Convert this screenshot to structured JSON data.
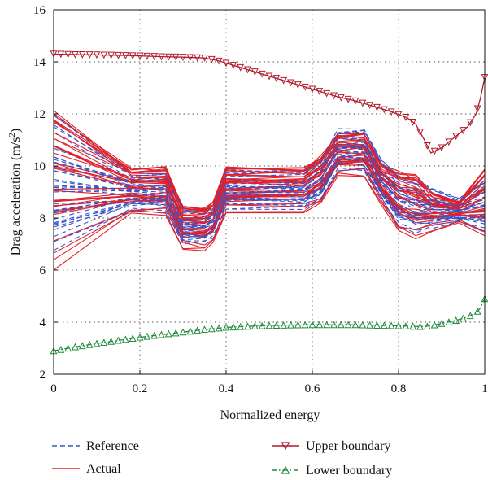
{
  "chart_data": {
    "type": "line",
    "xlabel": "Normalized energy",
    "ylabel": "Drag acceleration (m/s",
    "ylabel_sup": "2",
    "ylabel_close": ")",
    "xlim": [
      0,
      1
    ],
    "ylim": [
      2,
      16
    ],
    "xticks": [
      0,
      0.2,
      0.4,
      0.6,
      0.8,
      1
    ],
    "xtick_labels": [
      "0",
      "0.2",
      "0.4",
      "0.6",
      "0.8",
      "1"
    ],
    "yticks": [
      2,
      4,
      6,
      8,
      10,
      12,
      14,
      16
    ],
    "ytick_labels": [
      "2",
      "4",
      "6",
      "8",
      "10",
      "12",
      "14",
      "16"
    ],
    "grid": true,
    "legend_placement": "bottom",
    "colors": {
      "reference": "#3355cc",
      "actual": "#e0202a",
      "upper": "#b01c2e",
      "lower": "#1e8a3a"
    },
    "series": [
      {
        "name": "Upper boundary",
        "style": "solid-with-down-triangles",
        "x": [
          0,
          0.05,
          0.1,
          0.15,
          0.2,
          0.25,
          0.3,
          0.35,
          0.38,
          0.42,
          0.46,
          0.5,
          0.54,
          0.58,
          0.62,
          0.66,
          0.7,
          0.74,
          0.78,
          0.82,
          0.84,
          0.86,
          0.875,
          0.9,
          0.93,
          0.96,
          0.98,
          0.99,
          1.0
        ],
        "y": [
          14.3,
          14.28,
          14.27,
          14.25,
          14.23,
          14.2,
          14.18,
          14.15,
          14.05,
          13.85,
          13.65,
          13.45,
          13.25,
          13.05,
          12.85,
          12.65,
          12.5,
          12.3,
          12.1,
          11.85,
          11.6,
          11.0,
          10.5,
          10.7,
          11.1,
          11.5,
          12.0,
          12.6,
          13.4
        ]
      },
      {
        "name": "Lower boundary",
        "style": "dashdot-with-up-triangles",
        "x": [
          0,
          0.05,
          0.1,
          0.15,
          0.2,
          0.25,
          0.3,
          0.35,
          0.4,
          0.45,
          0.5,
          0.55,
          0.6,
          0.65,
          0.7,
          0.75,
          0.8,
          0.85,
          0.87,
          0.9,
          0.93,
          0.96,
          0.98,
          0.99,
          1.0
        ],
        "y": [
          2.9,
          3.05,
          3.18,
          3.3,
          3.42,
          3.52,
          3.62,
          3.72,
          3.8,
          3.84,
          3.87,
          3.89,
          3.9,
          3.9,
          3.9,
          3.88,
          3.86,
          3.83,
          3.85,
          3.95,
          4.05,
          4.2,
          4.35,
          4.55,
          4.9
        ]
      },
      {
        "name": "Reference",
        "style": "dashed",
        "note_band": "bundle of many trajectories",
        "x": [
          0,
          0.18,
          0.26,
          0.3,
          0.35,
          0.37,
          0.4,
          0.58,
          0.62,
          0.66,
          0.72,
          0.76,
          0.8,
          0.84,
          0.88,
          0.94,
          1.0
        ],
        "y_low": [
          6.5,
          8.2,
          8.2,
          7.0,
          7.0,
          7.2,
          8.3,
          8.3,
          8.6,
          9.8,
          9.8,
          8.6,
          7.6,
          7.4,
          7.6,
          7.8,
          7.4
        ],
        "y_high": [
          12.2,
          9.9,
          9.9,
          8.4,
          8.4,
          8.6,
          9.9,
          9.9,
          10.4,
          11.5,
          11.5,
          10.3,
          9.8,
          9.6,
          9.2,
          8.8,
          9.6
        ]
      },
      {
        "name": "Actual",
        "style": "solid",
        "note_band": "bundle of many trajectories",
        "x": [
          0,
          0.18,
          0.26,
          0.3,
          0.35,
          0.37,
          0.4,
          0.58,
          0.62,
          0.66,
          0.72,
          0.76,
          0.8,
          0.84,
          0.88,
          0.94,
          1.0
        ],
        "y_low": [
          6.0,
          8.1,
          8.1,
          6.8,
          6.7,
          7.0,
          8.2,
          8.2,
          8.5,
          9.6,
          9.6,
          8.5,
          7.4,
          7.2,
          7.5,
          7.8,
          7.2
        ],
        "y_high": [
          12.5,
          10.0,
          10.0,
          8.5,
          8.5,
          8.7,
          10.0,
          10.0,
          10.5,
          11.3,
          11.3,
          10.2,
          9.9,
          9.7,
          9.0,
          8.7,
          10.0
        ]
      }
    ],
    "legend": [
      {
        "label": "Reference",
        "style": "dashed",
        "color_key": "reference"
      },
      {
        "label": "Actual",
        "style": "solid",
        "color_key": "actual"
      },
      {
        "label": "Upper boundary",
        "style": "solid-with-down-triangles",
        "color_key": "upper"
      },
      {
        "label": "Lower boundary",
        "style": "dashdot-with-up-triangles",
        "color_key": "lower"
      }
    ]
  }
}
